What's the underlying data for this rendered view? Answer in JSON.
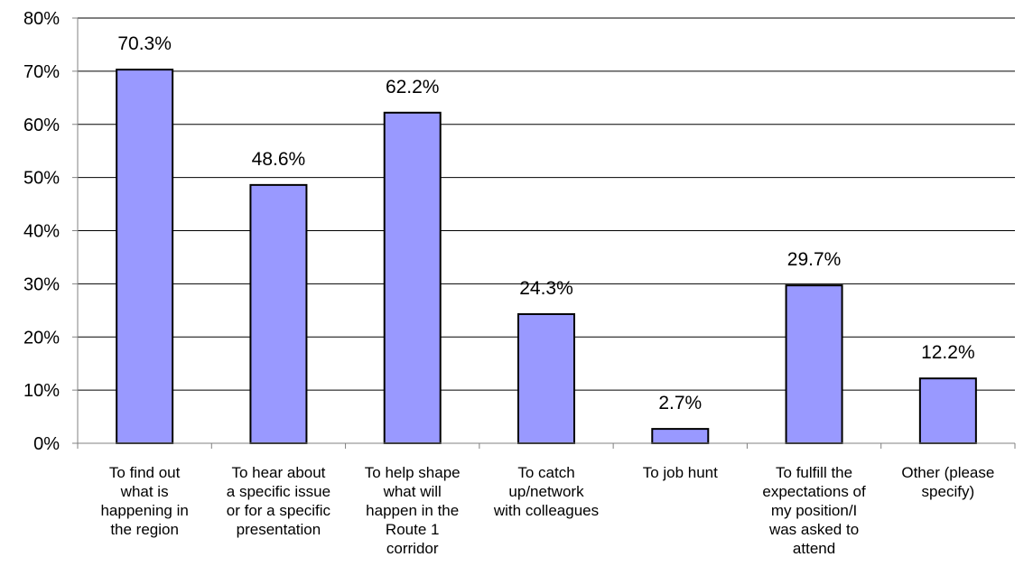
{
  "chart_data": {
    "type": "bar",
    "title": "",
    "xlabel": "",
    "ylabel": "",
    "ylim": [
      0,
      80
    ],
    "y_ticks": [
      "0%",
      "10%",
      "20%",
      "30%",
      "40%",
      "50%",
      "60%",
      "70%",
      "80%"
    ],
    "y_tick_values": [
      0,
      10,
      20,
      30,
      40,
      50,
      60,
      70,
      80
    ],
    "grid": true,
    "legend": "none",
    "categories": [
      "To find out\nwhat is\nhappening in\nthe region",
      "To hear about\na specific issue\nor for a specific\npresentation",
      "To help shape\nwhat will\nhappen in the\nRoute 1\ncorridor",
      "To catch\nup/network\nwith colleagues",
      "To job hunt",
      "To fulfill the\nexpectations of\nmy position/I\nwas asked to\nattend",
      "Other (please\nspecify)"
    ],
    "values": [
      70.3,
      48.6,
      62.2,
      24.3,
      2.7,
      29.7,
      12.2
    ],
    "data_labels": [
      "70.3%",
      "48.6%",
      "62.2%",
      "24.3%",
      "2.7%",
      "29.7%",
      "12.2%"
    ],
    "colors": {
      "bar_fill": "#9999ff",
      "bar_stroke": "#000000",
      "grid": "#000000",
      "axis": "#808080"
    }
  }
}
